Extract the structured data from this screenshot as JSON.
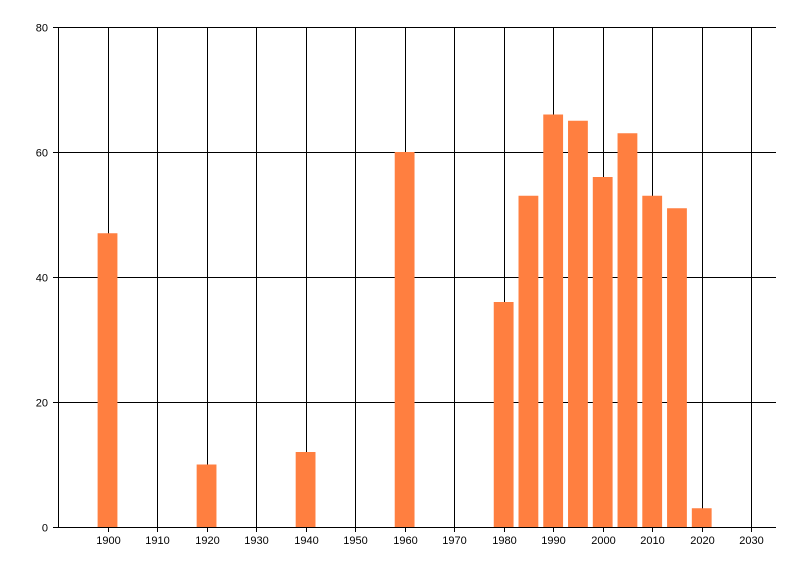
{
  "chart_data": {
    "type": "bar",
    "title": "",
    "xlabel": "",
    "ylabel": "",
    "x": [
      1900,
      1920,
      1940,
      1960,
      1980,
      1985,
      1990,
      1995,
      2000,
      2005,
      2010,
      2015,
      2020
    ],
    "values": [
      47,
      10,
      12,
      60,
      36,
      53,
      66,
      65,
      56,
      63,
      53,
      51,
      3
    ],
    "xlim": [
      1890,
      2035
    ],
    "ylim": [
      0,
      80
    ],
    "x_ticks": [
      1900,
      1910,
      1920,
      1930,
      1940,
      1950,
      1960,
      1970,
      1980,
      1990,
      2000,
      2010,
      2020,
      2030
    ],
    "y_ticks": [
      0,
      20,
      40,
      60,
      80
    ],
    "bar_width_years": 4,
    "bar_color": "#FF7F40",
    "grid": true,
    "grid_color": "#000000",
    "legend": "none"
  }
}
